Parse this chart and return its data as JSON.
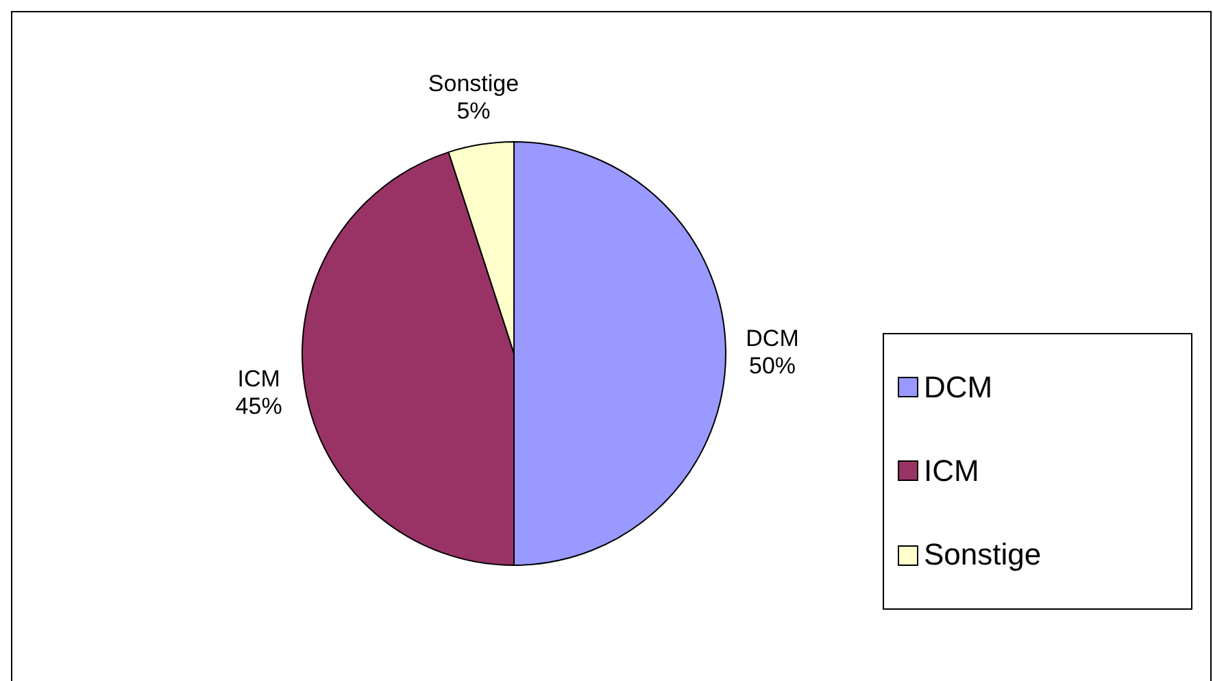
{
  "chart_data": {
    "type": "pie",
    "categories": [
      "DCM",
      "ICM",
      "Sonstige"
    ],
    "values": [
      50,
      45,
      5
    ],
    "value_labels": [
      "50%",
      "45%",
      "5%"
    ],
    "colors": [
      "#9999ff",
      "#993366",
      "#ffffcc"
    ],
    "legend": "right"
  }
}
